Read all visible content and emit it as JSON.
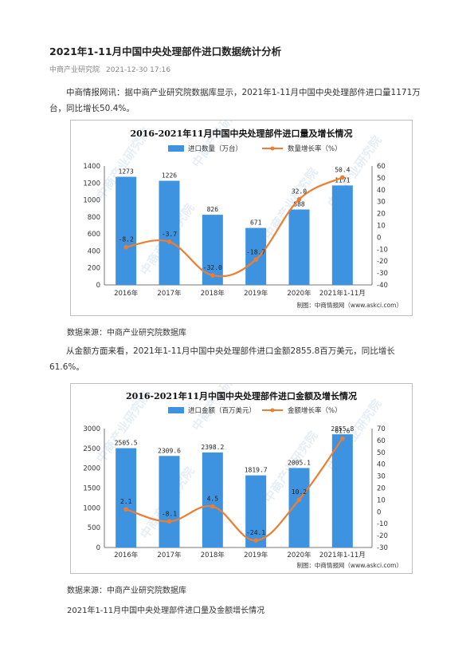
{
  "article": {
    "title": "2021年1-11月中国中央处理部件进口数据统计分析",
    "source_name": "中商产业研究院",
    "date": "2021-12-30 17:16",
    "para1": "中商情报网讯：据中商产业研究院数据库显示，2021年1-11月中国中央处理部件进口量1171万台，同比增长50.4%。",
    "source1": "数据来源：中商产业研究院数据库",
    "para2": "从金额方面来看，2021年1-11月中国中央处理部件进口金额2855.8百万美元，同比增长61.6%。",
    "source2": "数据来源：中商产业研究院数据库",
    "caption": "2021年1-11月中国中央处理部件进口量及金额增长情况"
  },
  "colors": {
    "bar": "#3d93e0",
    "line": "#ef7d31",
    "grid": "#e8e8e8"
  },
  "chart_data": [
    {
      "type": "bar",
      "title": "2016-2021年11月中国中央处理部件进口量及增长情况",
      "categories": [
        "2016年",
        "2017年",
        "2018年",
        "2019年",
        "2020年",
        "2021年1-11月"
      ],
      "series": [
        {
          "name": "进口数量（万台）",
          "type": "bar",
          "axis": "left",
          "values": [
            1273,
            1226,
            826,
            671,
            888,
            1171
          ]
        },
        {
          "name": "数量增长率（%）",
          "type": "line",
          "axis": "right",
          "values": [
            -8.2,
            -3.7,
            -32.0,
            -18.7,
            32.0,
            50.4
          ]
        }
      ],
      "y_left": {
        "min": 0,
        "max": 1400,
        "step": 200
      },
      "y_right": {
        "min": -40,
        "max": 60,
        "step": 10
      },
      "bar_labels": [
        "1273",
        "1226",
        "826",
        "671",
        "888",
        "1171"
      ],
      "line_labels": [
        "-8.2",
        "-3.7",
        "-32.0",
        "-18.7",
        "32.0",
        "50.4"
      ],
      "credit": "制图：中商情报网（www.askci.com）",
      "legend_position": "top"
    },
    {
      "type": "bar",
      "title": "2016-2021年11月中国中央处理部件进口金额及增长情况",
      "categories": [
        "2016年",
        "2017年",
        "2018年",
        "2019年",
        "2020年",
        "2021年1-11月"
      ],
      "series": [
        {
          "name": "进口金额（百万美元）",
          "type": "bar",
          "axis": "left",
          "values": [
            2505.5,
            2309.6,
            2398.2,
            1819.7,
            2005.1,
            2855.8
          ]
        },
        {
          "name": "金额增长率（%）",
          "type": "line",
          "axis": "right",
          "values": [
            2.1,
            -8.1,
            4.5,
            -24.1,
            10.2,
            61.6
          ]
        }
      ],
      "y_left": {
        "min": 0,
        "max": 3000,
        "step": 500
      },
      "y_right": {
        "min": -30,
        "max": 70,
        "step": 10
      },
      "bar_labels": [
        "2505.5",
        "2309.6",
        "2398.2",
        "1819.7",
        "2005.1",
        "2855.8"
      ],
      "line_labels": [
        "2.1",
        "-8.1",
        "4.5",
        "-24.1",
        "10.2",
        "61.6"
      ],
      "credit": "制图：中商情报网（www.askci.com）",
      "legend_position": "top"
    }
  ],
  "watermark": "中商产业研究院"
}
